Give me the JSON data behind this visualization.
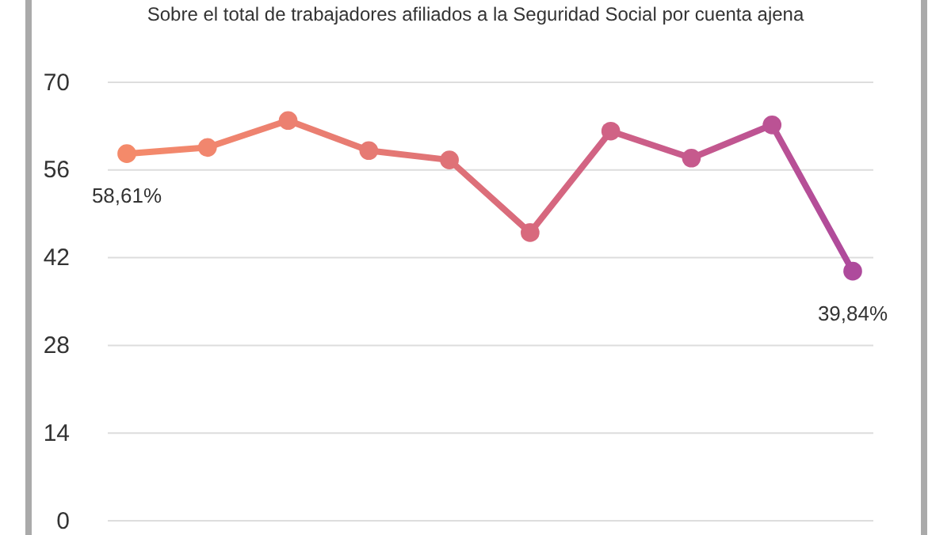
{
  "chart_data": {
    "type": "line",
    "subtitle": "Sobre el total de trabajadores afiliados a la Seguridad Social por cuenta ajena",
    "categories": [
      null,
      null,
      null,
      null,
      null,
      null,
      null,
      null,
      null,
      null
    ],
    "series": [
      {
        "values": [
          58.61,
          59.6,
          63.9,
          59.1,
          57.6,
          46.0,
          62.2,
          57.9,
          63.2,
          39.84
        ],
        "colors": [
          "#f48a6a",
          "#f1866e",
          "#ec8070",
          "#e67a73",
          "#df7277",
          "#d8697d",
          "#d06285",
          "#c65a8d",
          "#bb5294",
          "#ae4a9c"
        ],
        "value_labels": [
          "58,61%",
          null,
          null,
          null,
          null,
          null,
          null,
          null,
          null,
          "39,84%"
        ]
      }
    ],
    "ylim": [
      0,
      70
    ],
    "yticks": [
      0,
      14,
      28,
      42,
      56,
      70
    ],
    "grid": "y",
    "marker": "circle",
    "line_style": "solid"
  }
}
